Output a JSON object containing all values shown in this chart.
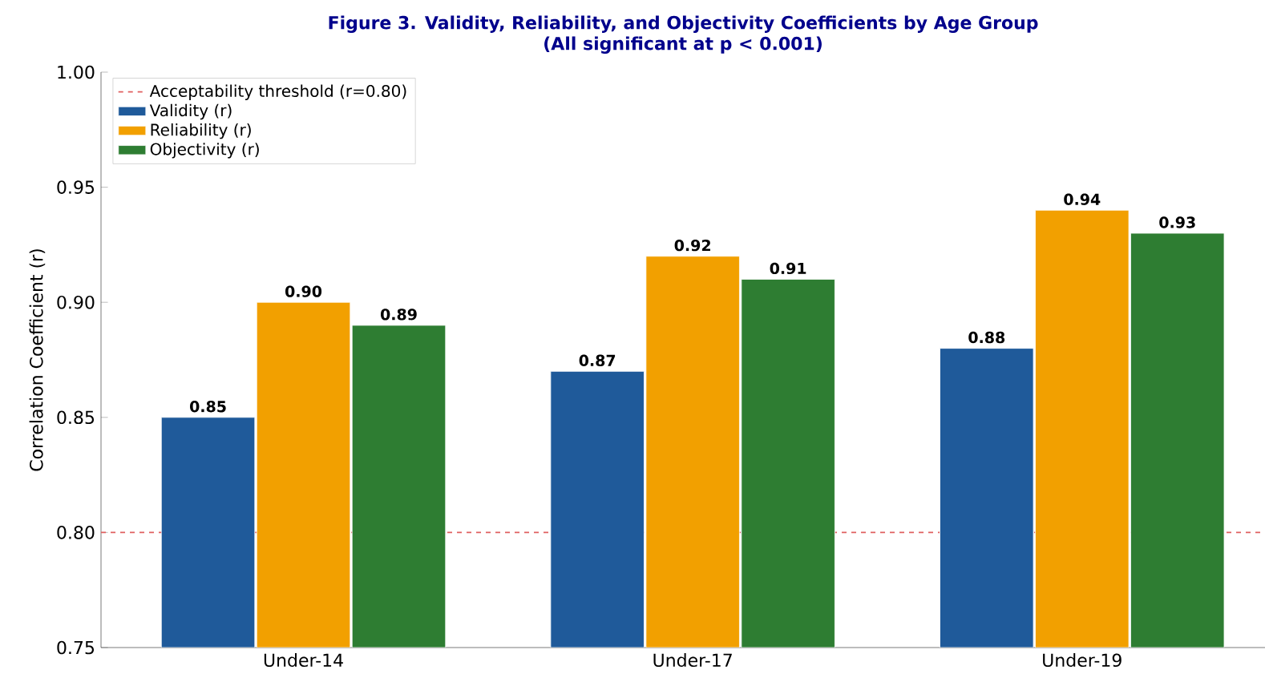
{
  "chart_data": {
    "type": "bar",
    "title": "Figure 3. Validity, Reliability, and Objectivity Coefficients by Age Group\n(All significant at p < 0.001)",
    "ylabel": "Correlation Coefficient (r)",
    "categories": [
      "Under-14",
      "Under-17",
      "Under-19"
    ],
    "series": [
      {
        "name": "Validity (r)",
        "color": "#1f5a9a",
        "values": [
          0.85,
          0.87,
          0.88
        ],
        "value_labels": [
          "0.85",
          "0.87",
          "0.88"
        ]
      },
      {
        "name": "Reliability (r)",
        "color": "#f2a000",
        "values": [
          0.9,
          0.92,
          0.94
        ],
        "value_labels": [
          "0.90",
          "0.92",
          "0.94"
        ]
      },
      {
        "name": "Objectivity (r)",
        "color": "#2e7d32",
        "values": [
          0.89,
          0.91,
          0.93
        ],
        "value_labels": [
          "0.89",
          "0.91",
          "0.93"
        ]
      }
    ],
    "ylim": [
      0.75,
      1.0
    ],
    "yticks": [
      0.75,
      {
        "value": 0.8,
        "label": "0.80"
      },
      0.85,
      {
        "value": 0.9,
        "label": "0.90"
      },
      0.95,
      {
        "value": 1.0,
        "label": "1.00"
      }
    ],
    "ref_lines": [
      {
        "axis": "y",
        "value": 0.8,
        "label": "Acceptability threshold (r=0.80)",
        "color": "#e06060",
        "line_style": "dashed"
      }
    ],
    "legend": "top left"
  }
}
